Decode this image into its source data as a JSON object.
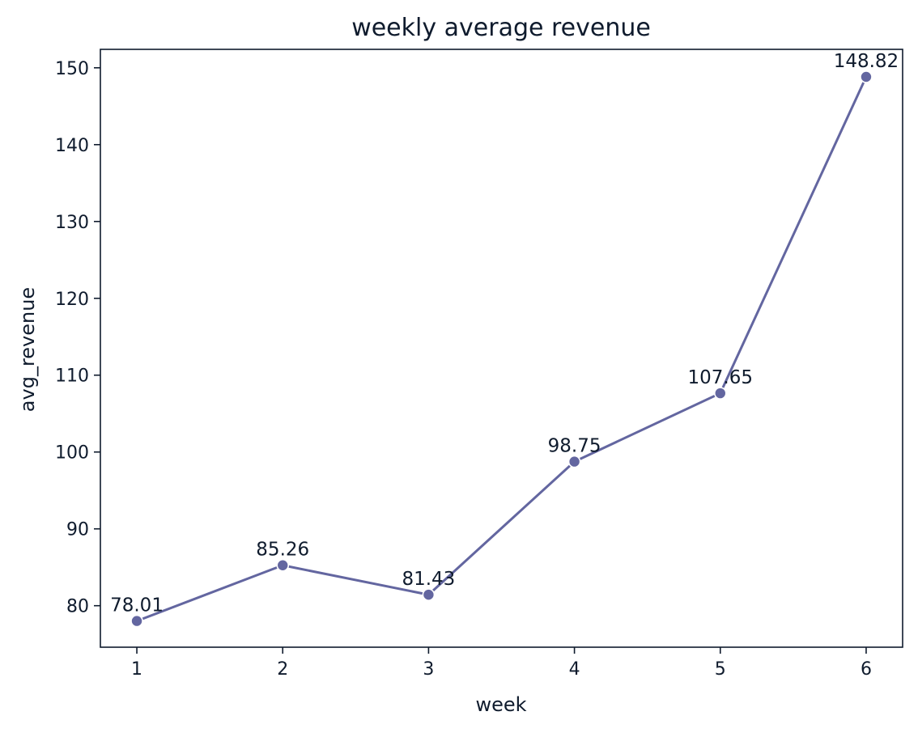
{
  "chart_data": {
    "type": "line",
    "title": "weekly average revenue",
    "xlabel": "week",
    "ylabel": "avg_revenue",
    "x": [
      1,
      2,
      3,
      4,
      5,
      6
    ],
    "series": [
      {
        "values": [
          78.01,
          85.26,
          81.43,
          98.75,
          107.65,
          148.82
        ],
        "labels": [
          "78.01",
          "85.26",
          "81.43",
          "98.75",
          "107.65",
          "148.82"
        ]
      }
    ],
    "xticks": [
      "1",
      "2",
      "3",
      "4",
      "5",
      "6"
    ],
    "yticks": [
      80,
      90,
      100,
      110,
      120,
      130,
      140,
      150
    ],
    "ytick_labels": [
      "80",
      "90",
      "100",
      "110",
      "120",
      "130",
      "140",
      "150"
    ],
    "xlim": [
      0.75,
      6.25
    ],
    "ylim": [
      74.6,
      152.4
    ],
    "grid": false,
    "line_color": "#6366a0",
    "marker": "circle"
  }
}
